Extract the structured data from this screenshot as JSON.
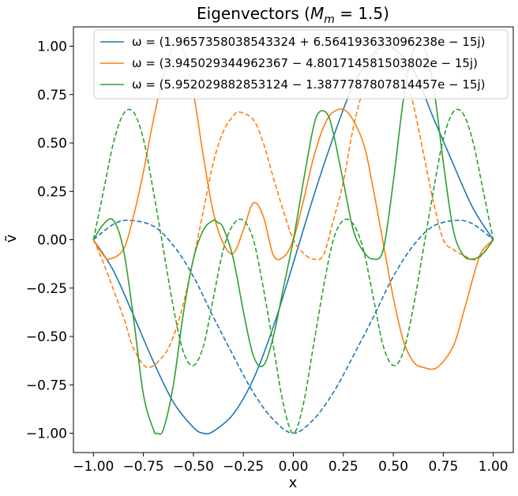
{
  "chart_data": {
    "type": "line",
    "title": "Eigenvectors (M_m = 1.5)",
    "title_parts": {
      "prefix": "Eigenvectors (",
      "var": "M",
      "sub": "m",
      "suffix": " = 1.5)"
    },
    "xlabel": "x",
    "ylabel": "ṽ",
    "xlim": [
      -1.1,
      1.1
    ],
    "ylim": [
      -1.1,
      1.1
    ],
    "xticks": [
      -1.0,
      -0.75,
      -0.5,
      -0.25,
      0.0,
      0.25,
      0.5,
      0.75,
      1.0
    ],
    "xtick_labels": [
      "−1.00",
      "−0.75",
      "−0.50",
      "−0.25",
      "0.00",
      "0.25",
      "0.50",
      "0.75",
      "1.00"
    ],
    "yticks": [
      -1.0,
      -0.75,
      -0.5,
      -0.25,
      0.0,
      0.25,
      0.5,
      0.75,
      1.0
    ],
    "ytick_labels": [
      "−1.00",
      "−0.75",
      "−0.50",
      "−0.25",
      "0.00",
      "0.25",
      "0.50",
      "0.75",
      "1.00"
    ],
    "grid": false,
    "legend_position": "top-right",
    "series": [
      {
        "name": "ω = (1.9657358038543324 + 6.564193633096238e − 15j)",
        "color": "#1f77b4",
        "solid": {
          "x": [
            -1.0,
            -0.9,
            -0.8,
            -0.7,
            -0.6,
            -0.5,
            -0.45,
            -0.4,
            -0.3,
            -0.2,
            -0.1,
            0.0,
            0.1,
            0.2,
            0.3,
            0.4,
            0.45,
            0.5,
            0.6,
            0.7,
            0.8,
            0.9,
            1.0
          ],
          "y": [
            0.0,
            -0.16,
            -0.39,
            -0.63,
            -0.84,
            -0.97,
            -1.0,
            -0.99,
            -0.9,
            -0.72,
            -0.45,
            -0.12,
            0.22,
            0.53,
            0.8,
            0.96,
            1.0,
            0.99,
            0.88,
            0.63,
            0.39,
            0.16,
            0.0
          ]
        },
        "dashed": {
          "x": [
            -1.0,
            -0.9,
            -0.82,
            -0.7,
            -0.6,
            -0.5,
            -0.4,
            -0.3,
            -0.2,
            -0.1,
            0.0,
            0.1,
            0.2,
            0.3,
            0.4,
            0.5,
            0.6,
            0.7,
            0.82,
            0.9,
            1.0
          ],
          "y": [
            0.0,
            0.08,
            0.1,
            0.07,
            -0.03,
            -0.19,
            -0.4,
            -0.6,
            -0.79,
            -0.93,
            -1.0,
            -0.93,
            -0.79,
            -0.6,
            -0.4,
            -0.19,
            -0.03,
            0.07,
            0.1,
            0.08,
            0.0
          ]
        }
      },
      {
        "name": "ω = (3.945029344962367 − 4.801714581503802e − 15j)",
        "color": "#ff7f0e",
        "solid": {
          "x": [
            -1.0,
            -0.95,
            -0.92,
            -0.85,
            -0.8,
            -0.75,
            -0.7,
            -0.65,
            -0.6,
            -0.55,
            -0.5,
            -0.45,
            -0.4,
            -0.35,
            -0.3,
            -0.25,
            -0.2,
            -0.15,
            -0.1,
            -0.05,
            0.0,
            0.05,
            0.1,
            0.15,
            0.2,
            0.27,
            0.35,
            0.4,
            0.45,
            0.5,
            0.55,
            0.6,
            0.65,
            0.72,
            0.8,
            0.85,
            0.92,
            0.95,
            1.0
          ],
          "y": [
            0.0,
            -0.08,
            -0.1,
            -0.05,
            0.12,
            0.35,
            0.62,
            0.85,
            1.0,
            0.98,
            0.76,
            0.43,
            0.14,
            -0.02,
            -0.07,
            0.05,
            0.19,
            0.12,
            -0.08,
            -0.09,
            0.0,
            0.2,
            0.42,
            0.58,
            0.66,
            0.66,
            0.5,
            0.26,
            -0.02,
            -0.3,
            -0.52,
            -0.63,
            -0.66,
            -0.66,
            -0.55,
            -0.38,
            -0.12,
            -0.05,
            0.0
          ]
        },
        "dashed": {
          "x": [
            -1.0,
            -0.95,
            -0.85,
            -0.8,
            -0.73,
            -0.65,
            -0.6,
            -0.55,
            -0.5,
            -0.45,
            -0.4,
            -0.35,
            -0.3,
            -0.27,
            -0.2,
            -0.15,
            -0.1,
            -0.05,
            0.0,
            0.05,
            0.1,
            0.15,
            0.2,
            0.25,
            0.3,
            0.35,
            0.4,
            0.45,
            0.5,
            0.55,
            0.6,
            0.65,
            0.7,
            0.75,
            0.8,
            0.85,
            0.92,
            1.0
          ],
          "y": [
            0.0,
            -0.12,
            -0.4,
            -0.56,
            -0.66,
            -0.6,
            -0.5,
            -0.33,
            -0.1,
            0.15,
            0.4,
            0.56,
            0.64,
            0.66,
            0.62,
            0.5,
            0.32,
            0.15,
            0.0,
            -0.07,
            -0.1,
            -0.08,
            0.1,
            0.3,
            0.58,
            0.78,
            0.93,
            1.0,
            0.98,
            0.88,
            0.7,
            0.45,
            0.2,
            0.0,
            -0.05,
            -0.08,
            -0.1,
            0.0
          ]
        }
      },
      {
        "name": "ω = (5.952029882853124 − 1.3877787807814457e − 15j)",
        "color": "#2ca02c",
        "solid": {
          "x": [
            -1.0,
            -0.95,
            -0.9,
            -0.85,
            -0.8,
            -0.75,
            -0.7,
            -0.68,
            -0.65,
            -0.6,
            -0.55,
            -0.5,
            -0.45,
            -0.4,
            -0.38,
            -0.35,
            -0.3,
            -0.25,
            -0.2,
            -0.15,
            -0.1,
            -0.05,
            0.0,
            0.05,
            0.1,
            0.13,
            0.17,
            0.2,
            0.25,
            0.3,
            0.35,
            0.4,
            0.45,
            0.5,
            0.55,
            0.6,
            0.65,
            0.7,
            0.75,
            0.8,
            0.85,
            0.9,
            0.95,
            1.0
          ],
          "y": [
            0.0,
            0.08,
            0.1,
            -0.05,
            -0.4,
            -0.8,
            -0.98,
            -1.0,
            -0.98,
            -0.75,
            -0.38,
            -0.1,
            0.05,
            0.1,
            0.09,
            0.06,
            -0.1,
            -0.37,
            -0.6,
            -0.65,
            -0.5,
            -0.25,
            0.0,
            0.3,
            0.58,
            0.66,
            0.65,
            0.55,
            0.3,
            0.05,
            -0.06,
            -0.1,
            -0.05,
            0.3,
            0.72,
            0.98,
            1.0,
            0.8,
            0.4,
            0.05,
            -0.08,
            -0.1,
            -0.07,
            0.0
          ]
        },
        "dashed": {
          "x": [
            -1.0,
            -0.95,
            -0.9,
            -0.85,
            -0.8,
            -0.75,
            -0.7,
            -0.65,
            -0.6,
            -0.55,
            -0.5,
            -0.45,
            -0.4,
            -0.35,
            -0.3,
            -0.25,
            -0.2,
            -0.15,
            -0.1,
            -0.05,
            0.0,
            0.05,
            0.1,
            0.15,
            0.2,
            0.25,
            0.3,
            0.35,
            0.4,
            0.45,
            0.5,
            0.55,
            0.6,
            0.65,
            0.7,
            0.75,
            0.8,
            0.85,
            0.9,
            0.95,
            1.0
          ],
          "y": [
            0.0,
            0.25,
            0.5,
            0.65,
            0.66,
            0.52,
            0.25,
            -0.05,
            -0.35,
            -0.58,
            -0.65,
            -0.55,
            -0.3,
            -0.05,
            0.08,
            0.1,
            0.0,
            -0.25,
            -0.55,
            -0.85,
            -1.0,
            -0.85,
            -0.55,
            -0.25,
            0.0,
            0.1,
            0.08,
            -0.05,
            -0.3,
            -0.55,
            -0.65,
            -0.58,
            -0.35,
            -0.05,
            0.25,
            0.52,
            0.66,
            0.65,
            0.5,
            0.25,
            0.0
          ]
        }
      }
    ]
  }
}
